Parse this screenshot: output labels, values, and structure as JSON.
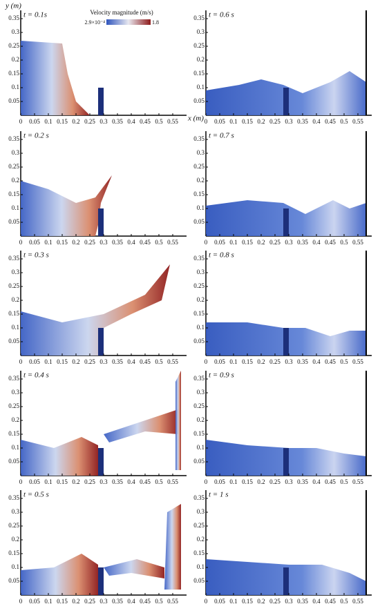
{
  "axis_labels": {
    "y": "y (m)",
    "x": "x (m)"
  },
  "colorbar": {
    "title": "Velocity magnitude (m/s)",
    "min_label": "2.9×10⁻⁴",
    "max_label": "1.8"
  },
  "yticks": [
    0.05,
    0.1,
    0.15,
    0.2,
    0.25,
    0.3,
    0.35
  ],
  "xticks": [
    0,
    0.05,
    0.1,
    0.15,
    0.2,
    0.25,
    0.3,
    0.35,
    0.4,
    0.45,
    0.5,
    0.55
  ],
  "panels": [
    {
      "time": "t = 0.1s"
    },
    {
      "time": "t = 0.2 s"
    },
    {
      "time": "t = 0.3 s"
    },
    {
      "time": "t = 0.4 s"
    },
    {
      "time": "t = 0.5 s"
    },
    {
      "time": "t = 0.6 s"
    },
    {
      "time": "t = 0.7 s"
    },
    {
      "time": "t = 0.8 s"
    },
    {
      "time": "t = 0.9 s"
    },
    {
      "time": "t = 1 s"
    }
  ]
}
